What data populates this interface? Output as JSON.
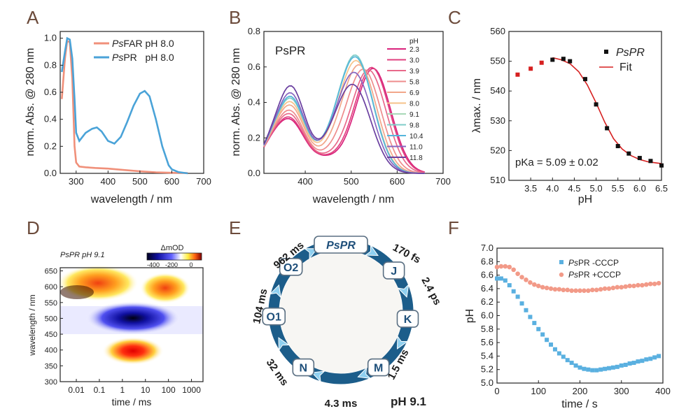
{
  "panels": {
    "A": {
      "label": "A"
    },
    "B": {
      "label": "B"
    },
    "C": {
      "label": "C"
    },
    "D": {
      "label": "D"
    },
    "E": {
      "label": "E"
    },
    "F": {
      "label": "F"
    }
  },
  "colors": {
    "salmon": "#f0907a",
    "blue": "#4aa3d8",
    "red": "#d62020",
    "cycle_blue": "#1c5d8a",
    "arrow_blue": "#8fd0f0",
    "f_blue": "#5ab0e0",
    "f_salmon": "#f29a88"
  },
  "chart_data": [
    {
      "id": "A",
      "type": "line",
      "xlabel": "wavelength / nm",
      "ylabel": "norm. Abs. @ 280 nm",
      "xlim": [
        250,
        700
      ],
      "ylim": [
        0,
        1.05
      ],
      "xticks": [
        "300",
        "400",
        "500",
        "600",
        "700"
      ],
      "yticks": [
        "0.0",
        "0.2",
        "0.4",
        "0.6",
        "0.8",
        "1.0"
      ],
      "legend": [
        {
          "italic": "Ps",
          "rest": "FAR pH 8.0"
        },
        {
          "italic": "Ps",
          "rest": "PR   pH 8.0"
        }
      ],
      "series": [
        {
          "name": "PsFAR pH 8.0",
          "x": [
            255,
            265,
            272,
            280,
            288,
            295,
            300,
            310,
            330,
            360,
            400,
            450,
            500,
            550,
            600,
            650
          ],
          "y": [
            0.55,
            0.85,
            0.98,
            0.97,
            0.7,
            0.2,
            0.08,
            0.05,
            0.045,
            0.04,
            0.035,
            0.025,
            0.015,
            0.008,
            0.004,
            0.002
          ]
        },
        {
          "name": "PsPR pH 8.0",
          "x": [
            255,
            265,
            272,
            280,
            288,
            295,
            300,
            310,
            330,
            350,
            365,
            380,
            400,
            420,
            440,
            460,
            480,
            500,
            515,
            530,
            550,
            570,
            590,
            600,
            620,
            650
          ],
          "y": [
            0.75,
            0.9,
            1.0,
            0.99,
            0.85,
            0.55,
            0.3,
            0.24,
            0.3,
            0.33,
            0.34,
            0.31,
            0.24,
            0.22,
            0.27,
            0.38,
            0.5,
            0.59,
            0.61,
            0.57,
            0.4,
            0.2,
            0.06,
            0.03,
            0.01,
            0.0
          ]
        }
      ]
    },
    {
      "id": "B",
      "type": "line",
      "title": "PsPR",
      "xlabel": "wavelength / nm",
      "ylabel": "norm. Abs. @ 280 nm",
      "xlim": [
        310,
        700
      ],
      "ylim": [
        0,
        0.8
      ],
      "xticks": [
        "400",
        "500",
        "600",
        "700"
      ],
      "yticks": [
        "0.0",
        "0.2",
        "0.4",
        "0.6",
        "0.8"
      ],
      "legend_title": "pH",
      "series": [
        {
          "name": "2.3",
          "color": "#d9237c",
          "peak_x": 548,
          "peak_y": 0.59,
          "short_y": 0.22
        },
        {
          "name": "3.0",
          "color": "#e0407f",
          "peak_x": 545,
          "peak_y": 0.595,
          "short_y": 0.23
        },
        {
          "name": "3.9",
          "color": "#e86a8a",
          "peak_x": 538,
          "peak_y": 0.58,
          "short_y": 0.25
        },
        {
          "name": "5.8",
          "color": "#ee8d8d",
          "peak_x": 527,
          "peak_y": 0.58,
          "short_y": 0.27
        },
        {
          "name": "6.9",
          "color": "#f2a78a",
          "peak_x": 518,
          "peak_y": 0.6,
          "short_y": 0.3
        },
        {
          "name": "8.0",
          "color": "#f6c38a",
          "peak_x": 512,
          "peak_y": 0.62,
          "short_y": 0.32
        },
        {
          "name": "9.1",
          "color": "#a8d9b8",
          "peak_x": 510,
          "peak_y": 0.64,
          "short_y": 0.34
        },
        {
          "name": "9.8",
          "color": "#7fcdc8",
          "peak_x": 510,
          "peak_y": 0.65,
          "short_y": 0.34
        },
        {
          "name": "10.4",
          "color": "#55b6dc",
          "peak_x": 510,
          "peak_y": 0.64,
          "short_y": 0.35
        },
        {
          "name": "11.0",
          "color": "#8866c0",
          "peak_x": 508,
          "peak_y": 0.55,
          "short_y": 0.37
        },
        {
          "name": "11.8",
          "color": "#6a3fa0",
          "peak_x": 505,
          "peak_y": 0.48,
          "short_y": 0.41
        }
      ]
    },
    {
      "id": "C",
      "type": "scatter",
      "xlabel": "pH",
      "ylabel": "λmax. / nm",
      "xlim": [
        3.0,
        6.5
      ],
      "ylim": [
        510,
        560
      ],
      "xticks": [
        "3.5",
        "4.0",
        "4.5",
        "5.0",
        "5.5",
        "6.0",
        "6.5"
      ],
      "yticks": [
        "510",
        "520",
        "530",
        "540",
        "550",
        "560"
      ],
      "legend": [
        "PsPR",
        "Fit"
      ],
      "annotation": "pKa = 5.09 ± 0.02",
      "series": [
        {
          "name": "PsPR (red)",
          "x": [
            3.2,
            3.5,
            3.75
          ],
          "y": [
            545.5,
            547.5,
            549.5
          ]
        },
        {
          "name": "PsPR",
          "x": [
            4.0,
            4.25,
            4.4,
            4.75,
            5.0,
            5.25,
            5.5,
            5.75,
            6.0,
            6.25,
            6.5
          ],
          "y": [
            550.5,
            550.8,
            550.0,
            544.0,
            535.5,
            527.5,
            521.5,
            519.0,
            517.5,
            516.5,
            515.0
          ]
        },
        {
          "name": "Fit",
          "x": [
            4.0,
            4.2,
            4.4,
            4.6,
            4.8,
            5.0,
            5.2,
            5.4,
            5.6,
            5.8,
            6.0,
            6.2,
            6.5
          ],
          "y": [
            551.2,
            550.5,
            549.2,
            546.5,
            542.0,
            536.0,
            529.5,
            524.0,
            520.5,
            518.3,
            517.0,
            516.2,
            515.6
          ]
        }
      ]
    },
    {
      "id": "D",
      "type": "heatmap",
      "title": "PsPR pH 9.1",
      "xlabel": "time / ms",
      "ylabel": "wavelength / nm",
      "colorbar_label": "ΔmOD",
      "colorbar_ticks": [
        "-400",
        "-200",
        "0"
      ],
      "xticks": [
        "0.01",
        "0.1",
        "1",
        "10",
        "100",
        "1000"
      ],
      "yticks": [
        "300",
        "350",
        "400",
        "450",
        "500",
        "550",
        "600",
        "650"
      ]
    },
    {
      "id": "F",
      "type": "scatter",
      "xlabel": "time / s",
      "ylabel": "pH",
      "xlim": [
        0,
        400
      ],
      "ylim": [
        5.0,
        7.0
      ],
      "xticks": [
        "0",
        "100",
        "200",
        "300",
        "400"
      ],
      "yticks": [
        "5.0",
        "5.2",
        "5.4",
        "5.6",
        "5.8",
        "6.0",
        "6.2",
        "6.4",
        "6.6",
        "6.8",
        "7.0"
      ],
      "legend": [
        {
          "italic": "Ps",
          "rest": "PR -CCCP"
        },
        {
          "italic": "Ps",
          "rest": "PR +CCCP"
        }
      ],
      "series": [
        {
          "name": "PsPR -CCCP",
          "x": [
            0,
            10,
            20,
            30,
            40,
            50,
            60,
            70,
            80,
            90,
            100,
            110,
            120,
            130,
            140,
            150,
            160,
            170,
            180,
            190,
            200,
            210,
            220,
            230,
            240,
            250,
            260,
            270,
            280,
            290,
            300,
            310,
            320,
            330,
            340,
            350,
            360,
            370,
            380,
            390
          ],
          "y": [
            6.55,
            6.55,
            6.52,
            6.45,
            6.36,
            6.28,
            6.18,
            6.08,
            5.98,
            5.89,
            5.8,
            5.72,
            5.64,
            5.57,
            5.5,
            5.44,
            5.39,
            5.34,
            5.3,
            5.26,
            5.23,
            5.21,
            5.2,
            5.19,
            5.19,
            5.2,
            5.21,
            5.22,
            5.23,
            5.24,
            5.26,
            5.27,
            5.29,
            5.3,
            5.32,
            5.33,
            5.35,
            5.36,
            5.38,
            5.4
          ]
        },
        {
          "name": "PsPR +CCCP",
          "x": [
            0,
            10,
            20,
            30,
            40,
            50,
            60,
            70,
            80,
            90,
            100,
            110,
            120,
            130,
            140,
            150,
            160,
            170,
            180,
            190,
            200,
            210,
            220,
            230,
            240,
            250,
            260,
            270,
            280,
            290,
            300,
            310,
            320,
            330,
            340,
            350,
            360,
            370,
            380,
            390
          ],
          "y": [
            6.72,
            6.73,
            6.73,
            6.72,
            6.68,
            6.62,
            6.57,
            6.53,
            6.49,
            6.46,
            6.44,
            6.42,
            6.41,
            6.4,
            6.39,
            6.39,
            6.38,
            6.38,
            6.37,
            6.37,
            6.37,
            6.37,
            6.37,
            6.38,
            6.38,
            6.39,
            6.4,
            6.4,
            6.41,
            6.42,
            6.42,
            6.43,
            6.44,
            6.44,
            6.45,
            6.45,
            6.46,
            6.47,
            6.47,
            6.48
          ]
        }
      ]
    }
  ],
  "cycle": {
    "center_state": "PsPR",
    "states": [
      "J",
      "K",
      "M",
      "N",
      "O1",
      "O2"
    ],
    "times": [
      "170 fs",
      "2.4 ps",
      "1.5 ms",
      "4.3 ms",
      "32 ms",
      "104 ms",
      "962 ms"
    ],
    "condition": "pH 9.1"
  }
}
